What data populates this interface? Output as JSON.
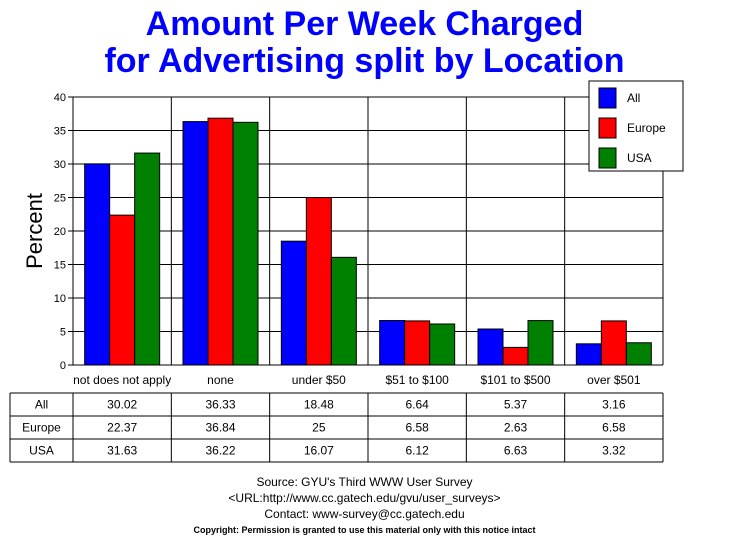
{
  "title_lines": [
    "Amount Per Week Charged",
    "for Advertising split by Location"
  ],
  "chart_data": {
    "type": "bar",
    "ylabel": "Percent",
    "ylim": [
      0,
      40
    ],
    "yticks": [
      0,
      5,
      10,
      15,
      20,
      25,
      30,
      35,
      40
    ],
    "grid": true,
    "legend_position": "top-right",
    "categories": [
      "not does not apply",
      "none",
      "under $50",
      "$51 to $100",
      "$101 to $500",
      "over $501"
    ],
    "series": [
      {
        "name": "All",
        "color": "#0000ff",
        "values": [
          30.02,
          36.33,
          18.48,
          6.64,
          5.37,
          3.16
        ],
        "labels": [
          "30.02",
          "36.33",
          "18.48",
          "6.64",
          "5.37",
          "3.16"
        ]
      },
      {
        "name": "Europe",
        "color": "#ff0000",
        "values": [
          22.37,
          36.84,
          25,
          6.58,
          2.63,
          6.58
        ],
        "labels": [
          "22.37",
          "36.84",
          "25",
          "6.58",
          "2.63",
          "6.58"
        ]
      },
      {
        "name": "USA",
        "color": "#008000",
        "values": [
          31.63,
          36.22,
          16.07,
          6.12,
          6.63,
          3.32
        ],
        "labels": [
          "31.63",
          "36.22",
          "16.07",
          "6.12",
          "6.63",
          "3.32"
        ]
      }
    ]
  },
  "footer": {
    "source": "Source: GYU's Third WWW User Survey",
    "url": "<URL:http://www.cc.gatech.edu/gvu/user_surveys>",
    "contact": "Contact: www-survey@cc.gatech.edu",
    "copyright": "Copyright: Permission is granted to use this material only with this notice intact"
  }
}
